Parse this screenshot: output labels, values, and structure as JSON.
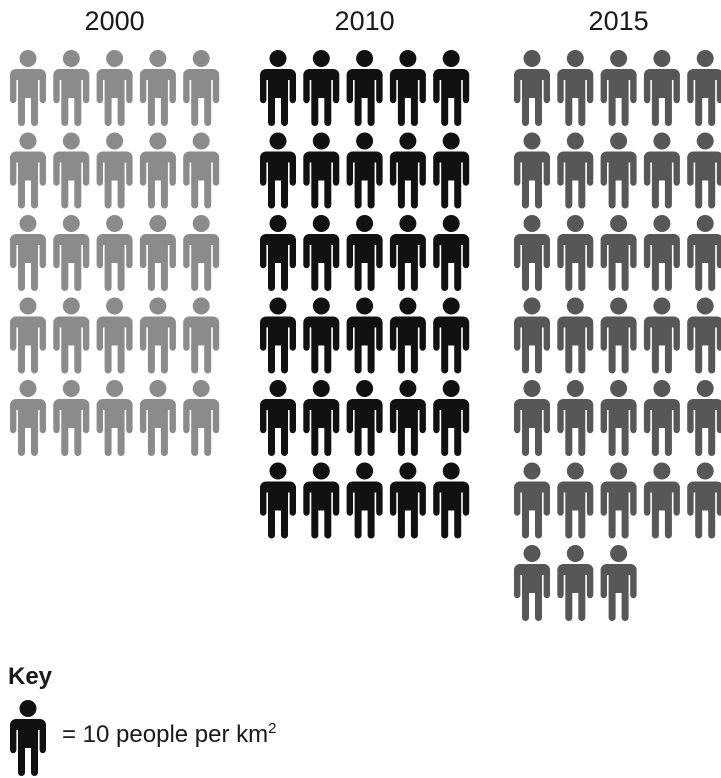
{
  "chart_data": {
    "type": "pictogram",
    "unit_value": 10,
    "series": [
      {
        "name": "2000",
        "value": 255,
        "icons": 25.5,
        "color": "#8b8b8b"
      },
      {
        "name": "2010",
        "value": 305,
        "icons": 30.5,
        "color": "#111111"
      },
      {
        "name": "2015",
        "value": 337,
        "icons": 33.7,
        "color": "#575757"
      }
    ],
    "icons_per_row": 5
  },
  "key": {
    "title": "Key",
    "text": "= 10 people per km",
    "superscript": "2",
    "icon_color": "#111111"
  }
}
